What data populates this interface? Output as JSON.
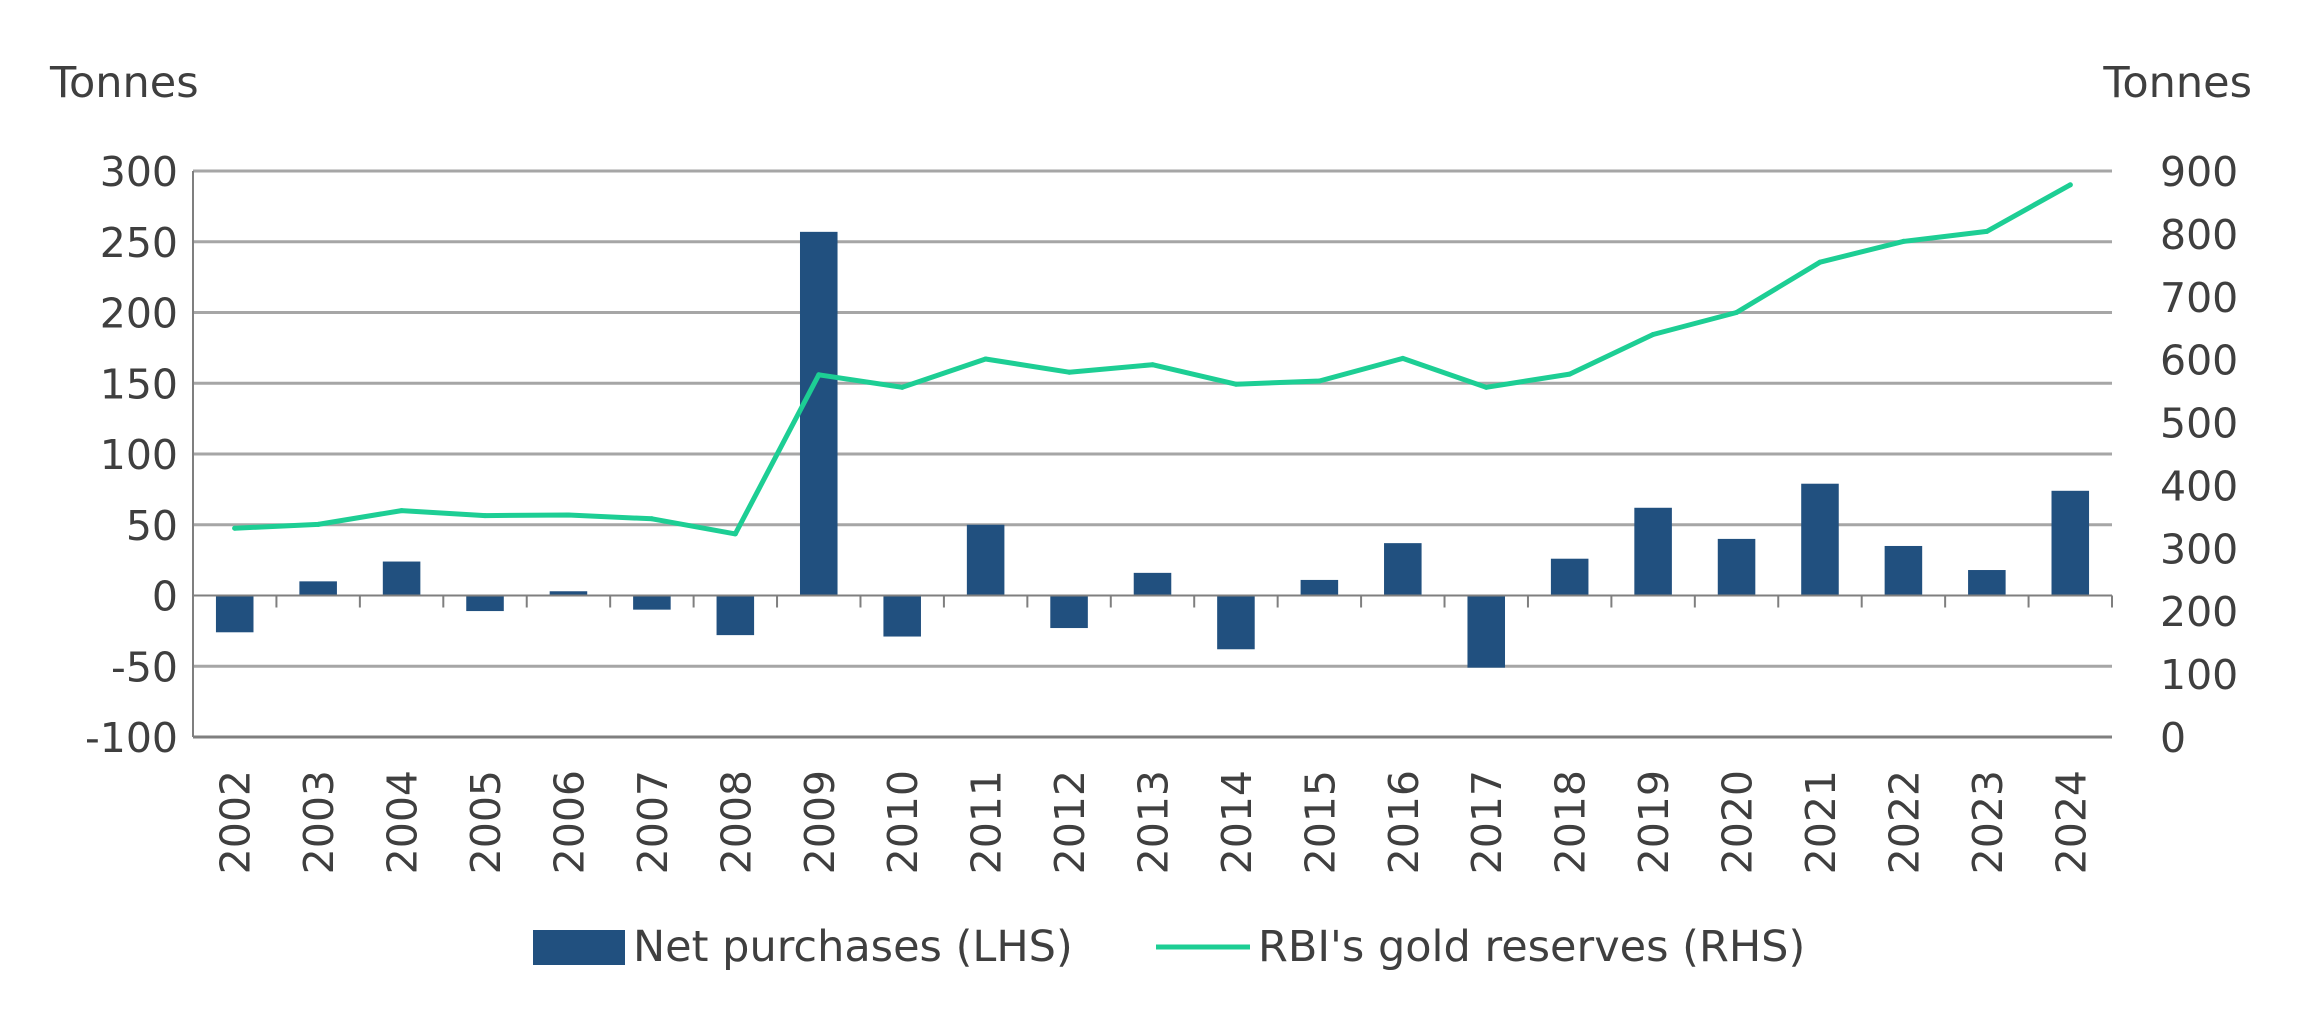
{
  "chart_data": {
    "type": "bar+line",
    "categories": [
      "2002",
      "2003",
      "2004",
      "2005",
      "2006",
      "2007",
      "2008",
      "2009",
      "2010",
      "2011",
      "2012",
      "2013",
      "2014",
      "2015",
      "2016",
      "2017",
      "2018",
      "2019",
      "2020",
      "2021",
      "2022",
      "2023",
      "2024"
    ],
    "series": [
      {
        "name": "Net purchases (LHS)",
        "type": "bar",
        "axis": "left",
        "color": "#21507f",
        "values": [
          -26,
          10,
          24,
          -11,
          3,
          -10,
          -28,
          257,
          -29,
          50,
          -23,
          16,
          -38,
          11,
          37,
          -51,
          26,
          62,
          40,
          79,
          35,
          18,
          74
        ]
      },
      {
        "name": "RBI's gold reserves (RHS)",
        "type": "line",
        "axis": "right",
        "color": "#1dce94",
        "values": [
          332,
          338,
          360,
          352,
          353,
          347,
          323,
          576,
          556,
          601,
          580,
          592,
          561,
          566,
          602,
          556,
          577,
          640,
          675,
          755,
          788,
          804,
          878
        ]
      }
    ],
    "left_axis": {
      "label": "Tonnes",
      "min": -100,
      "max": 300,
      "step": 50,
      "ticks": [
        "300",
        "250",
        "200",
        "150",
        "100",
        "50",
        "0",
        "-50",
        "-100"
      ]
    },
    "right_axis": {
      "label": "Tonnes",
      "min": 0,
      "max": 900,
      "step": 100,
      "ticks": [
        "900",
        "800",
        "700",
        "600",
        "500",
        "400",
        "300",
        "200",
        "100",
        "0"
      ]
    },
    "grid": true,
    "legend_position": "bottom-center"
  },
  "legend": {
    "bar_label": "Net purchases (LHS)",
    "line_label": "RBI's gold reserves (RHS)"
  }
}
